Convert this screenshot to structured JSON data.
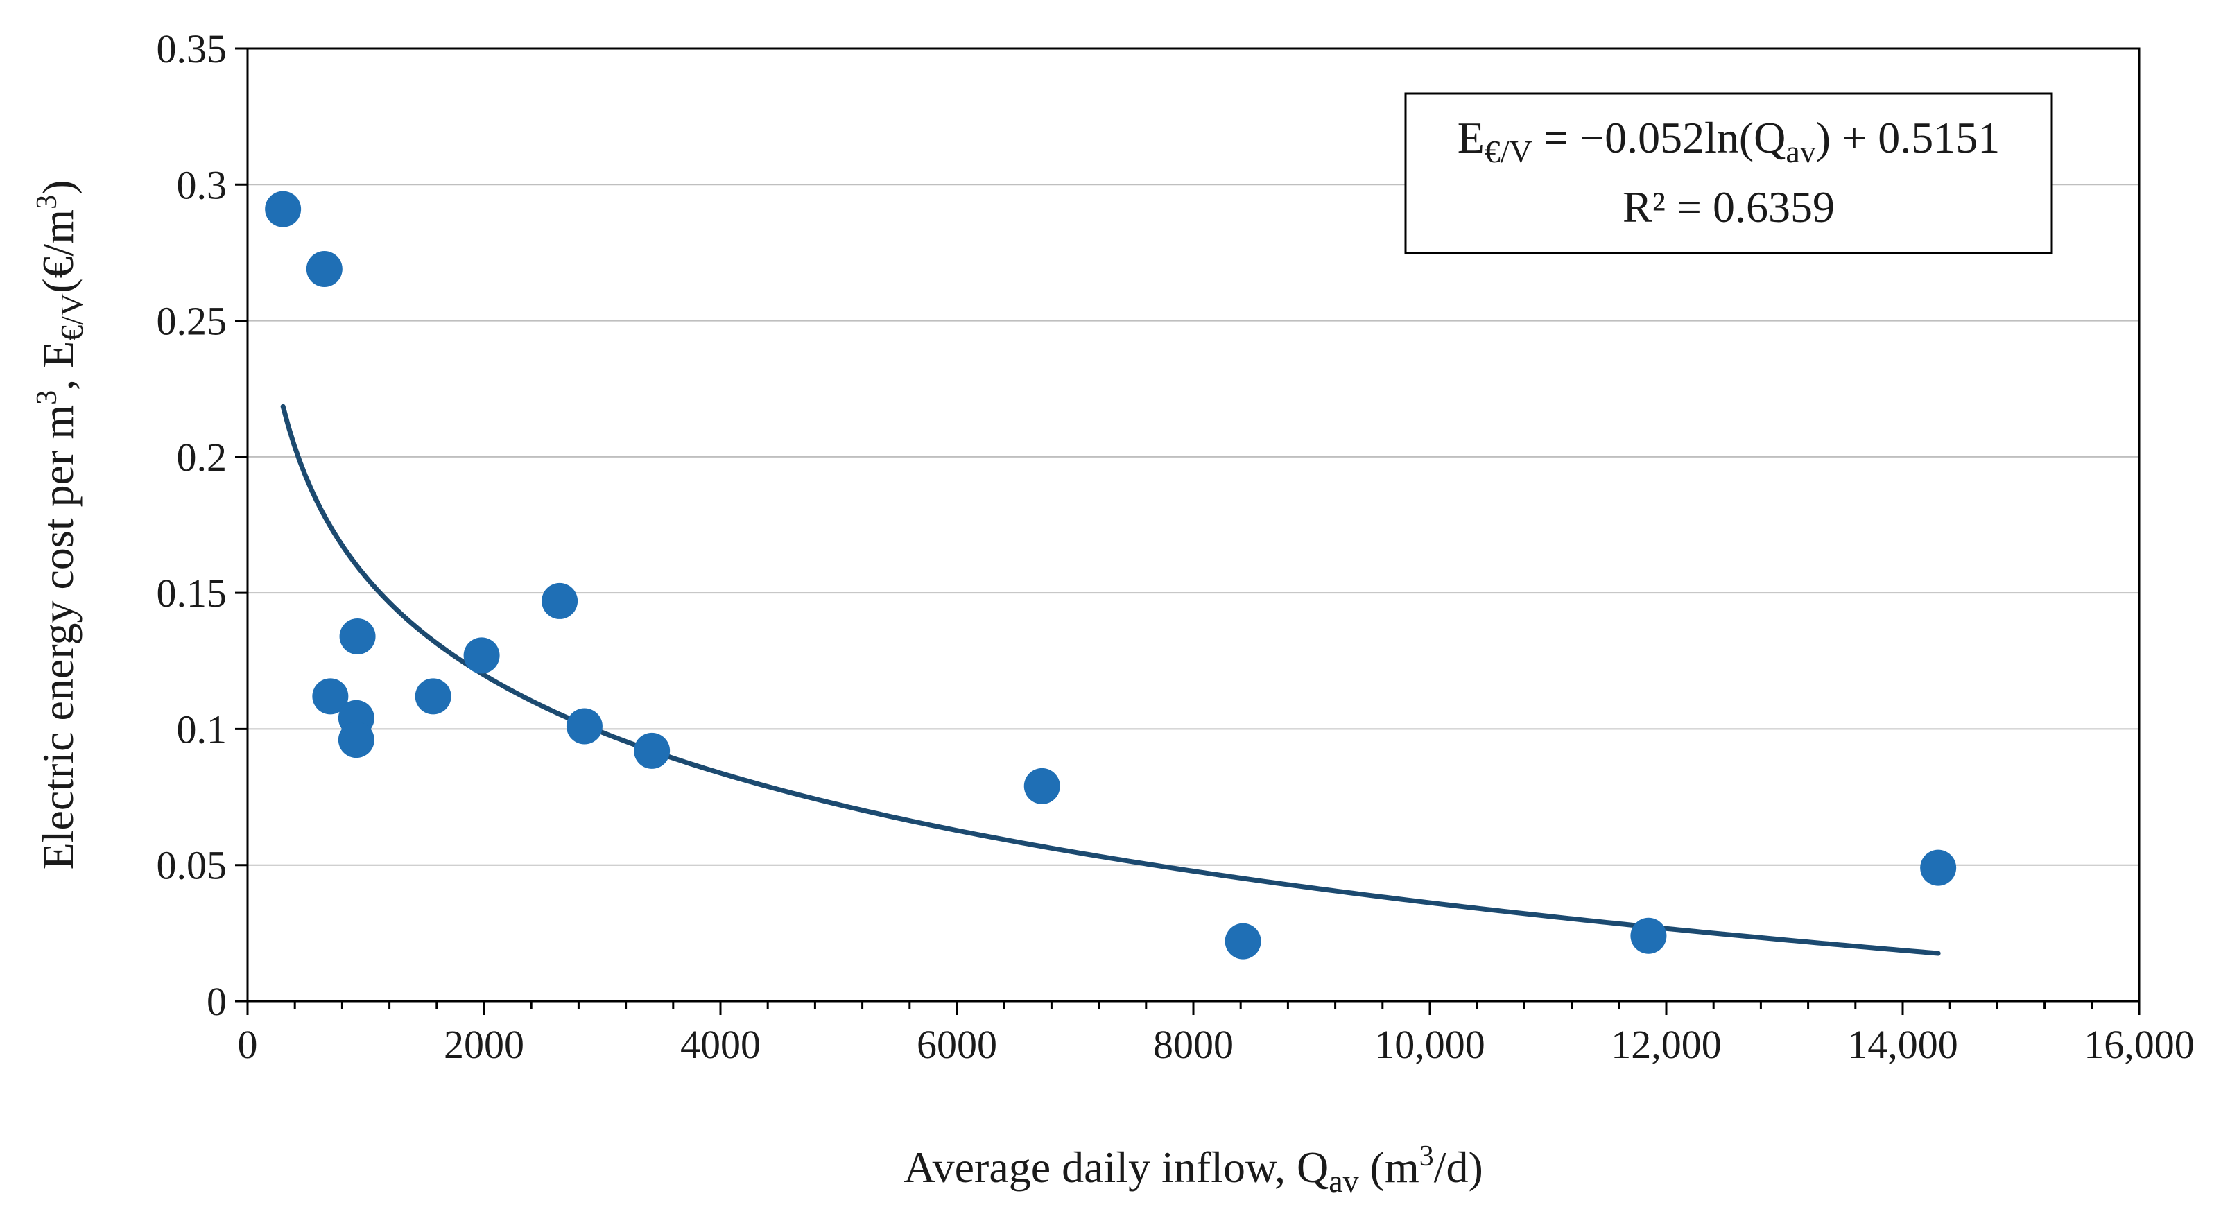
{
  "chart_data": {
    "type": "scatter",
    "xlabel": {
      "pre": "Average daily inflow, Q",
      "sub": "av",
      "mid": " (m",
      "sup": "3",
      "post": "/d)"
    },
    "ylabel": {
      "pre": "Electric energy cost per m",
      "sup": "3",
      "mid": ", E",
      "sub": "€/V",
      "post1": "(€/m",
      "sup2": "3",
      "post2": ")"
    },
    "xlim": [
      0,
      16000
    ],
    "ylim": [
      0,
      0.35
    ],
    "xticks": [
      {
        "value": 0,
        "label": "0"
      },
      {
        "value": 2000,
        "label": "2000"
      },
      {
        "value": 4000,
        "label": "4000"
      },
      {
        "value": 6000,
        "label": "6000"
      },
      {
        "value": 8000,
        "label": "8000"
      },
      {
        "value": 10000,
        "label": "10,000"
      },
      {
        "value": 12000,
        "label": "12,000"
      },
      {
        "value": 14000,
        "label": "14,000"
      },
      {
        "value": 16000,
        "label": "16,000"
      }
    ],
    "yticks": [
      {
        "value": 0,
        "label": "0"
      },
      {
        "value": 0.05,
        "label": "0.05"
      },
      {
        "value": 0.1,
        "label": "0.1"
      },
      {
        "value": 0.15,
        "label": "0.15"
      },
      {
        "value": 0.2,
        "label": "0.2"
      },
      {
        "value": 0.25,
        "label": "0.25"
      },
      {
        "value": 0.3,
        "label": "0.3"
      },
      {
        "value": 0.35,
        "label": "0.35"
      }
    ],
    "grid": "horizontal",
    "series": [
      {
        "points": [
          {
            "x": 300,
            "y": 0.291
          },
          {
            "x": 650,
            "y": 0.269
          },
          {
            "x": 700,
            "y": 0.112
          },
          {
            "x": 930,
            "y": 0.134
          },
          {
            "x": 920,
            "y": 0.104
          },
          {
            "x": 920,
            "y": 0.096
          },
          {
            "x": 1570,
            "y": 0.112
          },
          {
            "x": 1980,
            "y": 0.127
          },
          {
            "x": 2640,
            "y": 0.147
          },
          {
            "x": 2850,
            "y": 0.101
          },
          {
            "x": 3420,
            "y": 0.092
          },
          {
            "x": 6720,
            "y": 0.079
          },
          {
            "x": 8420,
            "y": 0.022
          },
          {
            "x": 11850,
            "y": 0.024
          },
          {
            "x": 14300,
            "y": 0.049
          }
        ],
        "color": "#1f6fb5"
      }
    ],
    "trendline": {
      "type": "log",
      "a": -0.052,
      "b": 0.5151,
      "x_from": 300,
      "x_to": 14300,
      "color": "#1c4a70"
    },
    "annotation": {
      "equation": {
        "e": "E",
        "sub": "€/V",
        "rest1": " = −0.052ln(Q",
        "sub2": "av",
        "rest2": ") + 0.5151"
      },
      "r2": "R² = 0.6359",
      "position": "top-right"
    }
  }
}
